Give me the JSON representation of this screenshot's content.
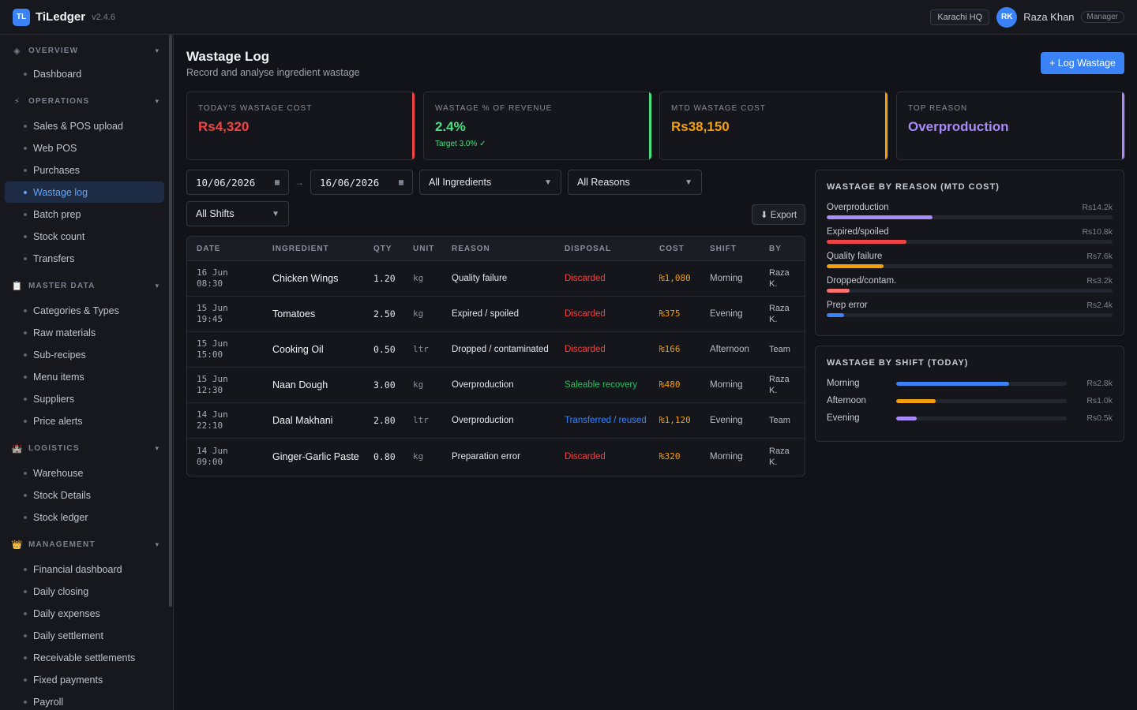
{
  "topbar": {
    "logo": "TL",
    "app_name": "TiLedger",
    "version": "v2.4.6",
    "branch": "Karachi HQ",
    "avatar_initials": "RK",
    "user_name": "Raza Khan",
    "role": "Manager"
  },
  "sidebar": {
    "groups": [
      {
        "key": "overview",
        "label": "OVERVIEW",
        "icon": "diamond-icon",
        "glyph": "◈",
        "items": [
          "Dashboard"
        ]
      },
      {
        "key": "operations",
        "label": "OPERATIONS",
        "icon": "lightning-icon",
        "glyph": "⚡",
        "items": [
          "Sales & POS upload",
          "Web POS",
          "Purchases",
          "Wastage log",
          "Batch prep",
          "Stock count",
          "Transfers"
        ]
      },
      {
        "key": "master-data",
        "label": "MASTER DATA",
        "icon": "clipboard-icon",
        "glyph": "📋",
        "items": [
          "Categories & Types",
          "Raw materials",
          "Sub-recipes",
          "Menu items",
          "Suppliers",
          "Price alerts"
        ]
      },
      {
        "key": "logistics",
        "label": "LOGISTICS",
        "icon": "warehouse-icon",
        "glyph": "🏰",
        "items": [
          "Warehouse",
          "Stock Details",
          "Stock ledger"
        ]
      },
      {
        "key": "management",
        "label": "MANAGEMENT",
        "icon": "crown-icon",
        "glyph": "👑",
        "items": [
          "Financial dashboard",
          "Daily closing",
          "Daily expenses",
          "Daily settlement",
          "Receivable settlements",
          "Fixed payments",
          "Payroll"
        ]
      }
    ],
    "active_item": "Wastage log"
  },
  "page": {
    "title": "Wastage Log",
    "subtitle": "Record and analyse ingredient wastage",
    "log_button": "+ Log Wastage"
  },
  "kpis": [
    {
      "label": "TODAY'S WASTAGE COST",
      "value": "Rs4,320",
      "note": "",
      "color": "#ef4444"
    },
    {
      "label": "WASTAGE % OF REVENUE",
      "value": "2.4%",
      "note": "Target 3.0% ✓",
      "color": "#4ade80"
    },
    {
      "label": "MTD WASTAGE COST",
      "value": "Rs38,150",
      "note": "",
      "color": "#f59e0b"
    },
    {
      "label": "TOP REASON",
      "value": "Overproduction",
      "note": "",
      "color": "#a78bfa"
    }
  ],
  "filters": {
    "date_from": "10/06/2026",
    "date_to": "16/06/2026",
    "separator": "→",
    "ingredients": "All Ingredients",
    "reasons": "All Reasons",
    "shifts": "All Shifts",
    "export": "⬇ Export"
  },
  "table": {
    "headers": [
      "DATE",
      "INGREDIENT",
      "QTY",
      "UNIT",
      "REASON",
      "DISPOSAL",
      "COST",
      "SHIFT",
      "BY"
    ],
    "rows": [
      {
        "date": "16 Jun 08:30",
        "ingredient": "Chicken Wings",
        "qty": "1.20",
        "unit": "kg",
        "reason": "Quality failure",
        "disposal": "Discarded",
        "disposal_color": "#ef4444",
        "cost": "₨1,080",
        "shift": "Morning",
        "by": "Raza K."
      },
      {
        "date": "15 Jun 19:45",
        "ingredient": "Tomatoes",
        "qty": "2.50",
        "unit": "kg",
        "reason": "Expired / spoiled",
        "disposal": "Discarded",
        "disposal_color": "#ef4444",
        "cost": "₨375",
        "shift": "Evening",
        "by": "Raza K."
      },
      {
        "date": "15 Jun 15:00",
        "ingredient": "Cooking Oil",
        "qty": "0.50",
        "unit": "ltr",
        "reason": "Dropped / contaminated",
        "disposal": "Discarded",
        "disposal_color": "#ef4444",
        "cost": "₨166",
        "shift": "Afternoon",
        "by": "Team"
      },
      {
        "date": "15 Jun 12:30",
        "ingredient": "Naan Dough",
        "qty": "3.00",
        "unit": "kg",
        "reason": "Overproduction",
        "disposal": "Saleable recovery",
        "disposal_color": "#22c55e",
        "cost": "₨480",
        "shift": "Morning",
        "by": "Raza K."
      },
      {
        "date": "14 Jun 22:10",
        "ingredient": "Daal Makhani",
        "qty": "2.80",
        "unit": "ltr",
        "reason": "Overproduction",
        "disposal": "Transferred / reused",
        "disposal_color": "#3b82f6",
        "cost": "₨1,120",
        "shift": "Evening",
        "by": "Team"
      },
      {
        "date": "14 Jun 09:00",
        "ingredient": "Ginger-Garlic Paste",
        "qty": "0.80",
        "unit": "kg",
        "reason": "Preparation error",
        "disposal": "Discarded",
        "disposal_color": "#ef4444",
        "cost": "₨320",
        "shift": "Morning",
        "by": "Raza K."
      }
    ]
  },
  "by_reason": {
    "title": "WASTAGE BY REASON (MTD COST)",
    "items": [
      {
        "label": "Overproduction",
        "amount": "Rs14.2k",
        "fraction": 0.37,
        "color": "#a78bfa"
      },
      {
        "label": "Expired/spoiled",
        "amount": "Rs10.8k",
        "fraction": 0.28,
        "color": "#ef4444"
      },
      {
        "label": "Quality failure",
        "amount": "Rs7.6k",
        "fraction": 0.2,
        "color": "#f59e0b"
      },
      {
        "label": "Dropped/contam.",
        "amount": "Rs3.2k",
        "fraction": 0.08,
        "color": "#f87171"
      },
      {
        "label": "Prep error",
        "amount": "Rs2.4k",
        "fraction": 0.06,
        "color": "#3b82f6"
      }
    ]
  },
  "by_shift": {
    "title": "WASTAGE BY SHIFT (TODAY)",
    "items": [
      {
        "label": "Morning",
        "amount": "Rs2.8k",
        "fraction": 0.66,
        "color": "#3b82f6"
      },
      {
        "label": "Afternoon",
        "amount": "Rs1.0k",
        "fraction": 0.23,
        "color": "#f59e0b"
      },
      {
        "label": "Evening",
        "amount": "Rs0.5k",
        "fraction": 0.12,
        "color": "#a78bfa"
      }
    ]
  }
}
